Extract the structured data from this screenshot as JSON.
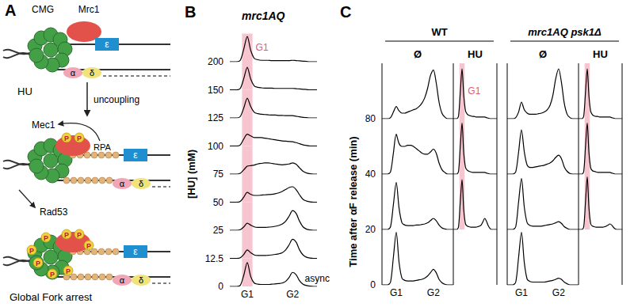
{
  "diagram": {
    "panel": "A",
    "labels": {
      "cmg": "CMG",
      "mrc1": "Mrc1",
      "epsilon": "ε",
      "alpha": "α",
      "delta": "δ",
      "hu": "HU",
      "uncoupling": "uncoupling",
      "mec1": "Mec1",
      "rpa": "RPA",
      "phospho": "P",
      "rad53": "Rad53",
      "result": "Global Fork arrest"
    }
  },
  "chart_data": [
    {
      "panel": "B",
      "type": "line",
      "title": "mrc1AQ",
      "ylabel": "[HU] (mM)",
      "color": "#000000",
      "grid": false,
      "tick_labels": "x",
      "x": [
        0,
        4,
        8,
        12,
        16,
        20,
        24,
        28,
        32,
        36,
        40,
        44,
        48,
        52,
        56,
        60,
        64,
        68,
        72,
        76,
        80,
        84,
        88,
        92,
        96,
        100
      ],
      "xlim": [
        0,
        100
      ],
      "xticks": [
        {
          "value": 20,
          "label": "G1"
        },
        {
          "value": 72,
          "label": "G2"
        }
      ],
      "ylim": [
        0,
        1
      ],
      "highlight": {
        "label": "G1",
        "from": 14,
        "to": 26,
        "color": "#f7c5cf"
      },
      "series": [
        {
          "hu": 0,
          "annotation": "async",
          "values": [
            0,
            0,
            0,
            0.04,
            0.4,
            0.85,
            0.35,
            0.12,
            0.08,
            0.07,
            0.07,
            0.07,
            0.08,
            0.09,
            0.1,
            0.12,
            0.18,
            0.32,
            0.5,
            0.42,
            0.2,
            0.08,
            0.03,
            0.01,
            0,
            0
          ]
        },
        {
          "hu": 12.5,
          "values": [
            0,
            0,
            0,
            0.02,
            0.14,
            0.3,
            0.2,
            0.12,
            0.1,
            0.1,
            0.1,
            0.11,
            0.12,
            0.14,
            0.16,
            0.2,
            0.3,
            0.48,
            0.68,
            0.58,
            0.3,
            0.12,
            0.04,
            0.01,
            0,
            0
          ]
        },
        {
          "hu": 25,
          "values": [
            0,
            0,
            0,
            0.02,
            0.12,
            0.25,
            0.18,
            0.12,
            0.1,
            0.1,
            0.1,
            0.11,
            0.12,
            0.14,
            0.17,
            0.22,
            0.32,
            0.5,
            0.7,
            0.6,
            0.32,
            0.12,
            0.04,
            0.01,
            0,
            0
          ]
        },
        {
          "hu": 50,
          "values": [
            0,
            0,
            0,
            0.03,
            0.18,
            0.35,
            0.28,
            0.24,
            0.24,
            0.25,
            0.26,
            0.27,
            0.28,
            0.3,
            0.33,
            0.38,
            0.45,
            0.52,
            0.55,
            0.45,
            0.26,
            0.1,
            0.04,
            0.01,
            0,
            0
          ]
        },
        {
          "hu": 75,
          "values": [
            0,
            0,
            0,
            0.03,
            0.15,
            0.28,
            0.3,
            0.32,
            0.36,
            0.38,
            0.4,
            0.4,
            0.38,
            0.36,
            0.34,
            0.33,
            0.34,
            0.36,
            0.4,
            0.35,
            0.22,
            0.1,
            0.04,
            0.01,
            0,
            0
          ]
        },
        {
          "hu": 100,
          "values": [
            0,
            0,
            0,
            0.04,
            0.25,
            0.42,
            0.36,
            0.3,
            0.3,
            0.3,
            0.28,
            0.26,
            0.24,
            0.22,
            0.2,
            0.18,
            0.17,
            0.16,
            0.15,
            0.12,
            0.08,
            0.04,
            0.02,
            0,
            0,
            0
          ]
        },
        {
          "hu": 125,
          "values": [
            0,
            0,
            0,
            0.05,
            0.35,
            0.7,
            0.4,
            0.2,
            0.15,
            0.13,
            0.12,
            0.11,
            0.1,
            0.1,
            0.09,
            0.09,
            0.08,
            0.08,
            0.08,
            0.06,
            0.04,
            0.02,
            0.01,
            0,
            0,
            0
          ]
        },
        {
          "hu": 150,
          "values": [
            0,
            0,
            0,
            0.05,
            0.4,
            0.8,
            0.38,
            0.14,
            0.09,
            0.07,
            0.06,
            0.06,
            0.06,
            0.05,
            0.05,
            0.05,
            0.05,
            0.05,
            0.05,
            0.04,
            0.03,
            0.02,
            0.01,
            0,
            0,
            0
          ]
        },
        {
          "hu": 200,
          "values": [
            0,
            0,
            0,
            0.05,
            0.45,
            0.9,
            0.4,
            0.12,
            0.07,
            0.05,
            0.05,
            0.05,
            0.04,
            0.04,
            0.04,
            0.04,
            0.04,
            0.04,
            0.05,
            0.04,
            0.03,
            0.02,
            0.01,
            0,
            0,
            0
          ]
        }
      ]
    },
    {
      "panel": "C",
      "type": "line",
      "ylabel": "Time after αF release (min)",
      "color": "#000000",
      "grid": false,
      "rows": [
        0,
        20,
        40,
        80
      ],
      "x": [
        0,
        4,
        8,
        12,
        16,
        20,
        24,
        28,
        32,
        36,
        40,
        44,
        48,
        52,
        56,
        60,
        64,
        68,
        72,
        76,
        80,
        84,
        88,
        92,
        96,
        100
      ],
      "xlim": [
        0,
        100
      ],
      "xticks": [
        {
          "value": 20,
          "label": "G1"
        },
        {
          "value": 72,
          "label": "G2"
        }
      ],
      "ylim": [
        0,
        1
      ],
      "highlight": {
        "label": "G1",
        "from": 14,
        "to": 26,
        "color": "#f7c5cf"
      },
      "groups": [
        {
          "name": "WT",
          "columns": [
            {
              "name": "Ø",
              "highlight": false,
              "tick_labels": "x",
              "series": [
                {
                  "time": 0,
                  "values": [
                    0,
                    0,
                    0,
                    0.05,
                    0.5,
                    0.95,
                    0.4,
                    0.12,
                    0.08,
                    0.07,
                    0.07,
                    0.07,
                    0.08,
                    0.09,
                    0.1,
                    0.12,
                    0.16,
                    0.22,
                    0.28,
                    0.22,
                    0.1,
                    0.04,
                    0.01,
                    0,
                    0,
                    0
                  ]
                },
                {
                  "time": 20,
                  "values": [
                    0,
                    0,
                    0,
                    0.05,
                    0.45,
                    0.85,
                    0.38,
                    0.12,
                    0.08,
                    0.07,
                    0.07,
                    0.07,
                    0.08,
                    0.08,
                    0.09,
                    0.1,
                    0.12,
                    0.16,
                    0.2,
                    0.16,
                    0.08,
                    0.03,
                    0.01,
                    0,
                    0,
                    0
                  ]
                },
                {
                  "time": 40,
                  "values": [
                    0,
                    0,
                    0,
                    0.04,
                    0.38,
                    0.72,
                    0.55,
                    0.5,
                    0.5,
                    0.52,
                    0.52,
                    0.5,
                    0.46,
                    0.42,
                    0.38,
                    0.36,
                    0.36,
                    0.4,
                    0.45,
                    0.38,
                    0.2,
                    0.08,
                    0.03,
                    0,
                    0,
                    0
                  ]
                },
                {
                  "time": 80,
                  "values": [
                    0,
                    0,
                    0,
                    0.02,
                    0.12,
                    0.22,
                    0.14,
                    0.1,
                    0.1,
                    0.12,
                    0.14,
                    0.16,
                    0.18,
                    0.22,
                    0.28,
                    0.38,
                    0.55,
                    0.78,
                    0.88,
                    0.65,
                    0.3,
                    0.1,
                    0.03,
                    0,
                    0,
                    0
                  ]
                }
              ]
            },
            {
              "name": "HU",
              "highlight": true,
              "tick_labels": false,
              "series": [
                {
                  "time": 20,
                  "values": [
                    0,
                    0,
                    0,
                    0.05,
                    0.5,
                    0.9,
                    0.35,
                    0.1,
                    0.06,
                    0.05,
                    0.04,
                    0.04,
                    0.04,
                    0.04,
                    0.05,
                    0.06,
                    0.08,
                    0.14,
                    0.2,
                    0.15,
                    0.07,
                    0.02,
                    0,
                    0,
                    0,
                    0
                  ]
                },
                {
                  "time": 40,
                  "values": [
                    0,
                    0,
                    0,
                    0.05,
                    0.5,
                    0.92,
                    0.38,
                    0.12,
                    0.07,
                    0.05,
                    0.04,
                    0.03,
                    0.03,
                    0.03,
                    0.03,
                    0.03,
                    0.03,
                    0.03,
                    0.03,
                    0.02,
                    0.01,
                    0,
                    0,
                    0,
                    0,
                    0
                  ]
                },
                {
                  "time": 80,
                  "values": [
                    0,
                    0,
                    0,
                    0.05,
                    0.48,
                    0.9,
                    0.42,
                    0.14,
                    0.08,
                    0.06,
                    0.05,
                    0.04,
                    0.04,
                    0.03,
                    0.03,
                    0.03,
                    0.03,
                    0.03,
                    0.03,
                    0.02,
                    0.01,
                    0,
                    0,
                    0,
                    0,
                    0
                  ]
                }
              ]
            }
          ]
        },
        {
          "name": "mrc1AQ psk1Δ",
          "columns": [
            {
              "name": "Ø",
              "highlight": false,
              "tick_labels": "x",
              "series": [
                {
                  "time": 0,
                  "values": [
                    0,
                    0,
                    0,
                    0.05,
                    0.5,
                    0.95,
                    0.4,
                    0.1,
                    0.06,
                    0.05,
                    0.05,
                    0.05,
                    0.05,
                    0.05,
                    0.06,
                    0.07,
                    0.08,
                    0.1,
                    0.12,
                    0.1,
                    0.05,
                    0.02,
                    0,
                    0,
                    0,
                    0
                  ]
                },
                {
                  "time": 20,
                  "values": [
                    0,
                    0,
                    0,
                    0.05,
                    0.5,
                    0.92,
                    0.4,
                    0.12,
                    0.07,
                    0.06,
                    0.06,
                    0.06,
                    0.06,
                    0.07,
                    0.08,
                    0.09,
                    0.1,
                    0.12,
                    0.14,
                    0.11,
                    0.05,
                    0.02,
                    0,
                    0,
                    0,
                    0
                  ]
                },
                {
                  "time": 40,
                  "values": [
                    0,
                    0,
                    0,
                    0.04,
                    0.4,
                    0.8,
                    0.4,
                    0.16,
                    0.12,
                    0.12,
                    0.13,
                    0.14,
                    0.15,
                    0.16,
                    0.18,
                    0.2,
                    0.24,
                    0.3,
                    0.34,
                    0.28,
                    0.13,
                    0.05,
                    0.01,
                    0,
                    0,
                    0
                  ]
                },
                {
                  "time": 80,
                  "values": [
                    0,
                    0,
                    0,
                    0.02,
                    0.12,
                    0.3,
                    0.16,
                    0.1,
                    0.08,
                    0.08,
                    0.08,
                    0.09,
                    0.1,
                    0.12,
                    0.16,
                    0.24,
                    0.42,
                    0.72,
                    0.9,
                    0.66,
                    0.28,
                    0.08,
                    0.02,
                    0,
                    0,
                    0
                  ]
                }
              ]
            },
            {
              "name": "HU",
              "highlight": true,
              "tick_labels": false,
              "series": [
                {
                  "time": 20,
                  "values": [
                    0,
                    0,
                    0,
                    0.05,
                    0.5,
                    0.95,
                    0.38,
                    0.1,
                    0.06,
                    0.05,
                    0.04,
                    0.04,
                    0.04,
                    0.04,
                    0.04,
                    0.05,
                    0.06,
                    0.08,
                    0.1,
                    0.08,
                    0.04,
                    0.01,
                    0,
                    0,
                    0,
                    0
                  ]
                },
                {
                  "time": 40,
                  "values": [
                    0,
                    0,
                    0,
                    0.05,
                    0.5,
                    0.92,
                    0.38,
                    0.11,
                    0.06,
                    0.05,
                    0.04,
                    0.03,
                    0.03,
                    0.03,
                    0.03,
                    0.03,
                    0.03,
                    0.03,
                    0.03,
                    0.02,
                    0.01,
                    0,
                    0,
                    0,
                    0,
                    0
                  ]
                },
                {
                  "time": 80,
                  "values": [
                    0,
                    0,
                    0,
                    0.05,
                    0.48,
                    0.9,
                    0.4,
                    0.13,
                    0.07,
                    0.05,
                    0.04,
                    0.04,
                    0.03,
                    0.03,
                    0.03,
                    0.03,
                    0.03,
                    0.03,
                    0.03,
                    0.02,
                    0.01,
                    0,
                    0,
                    0,
                    0,
                    0
                  ]
                }
              ]
            }
          ]
        }
      ]
    }
  ]
}
